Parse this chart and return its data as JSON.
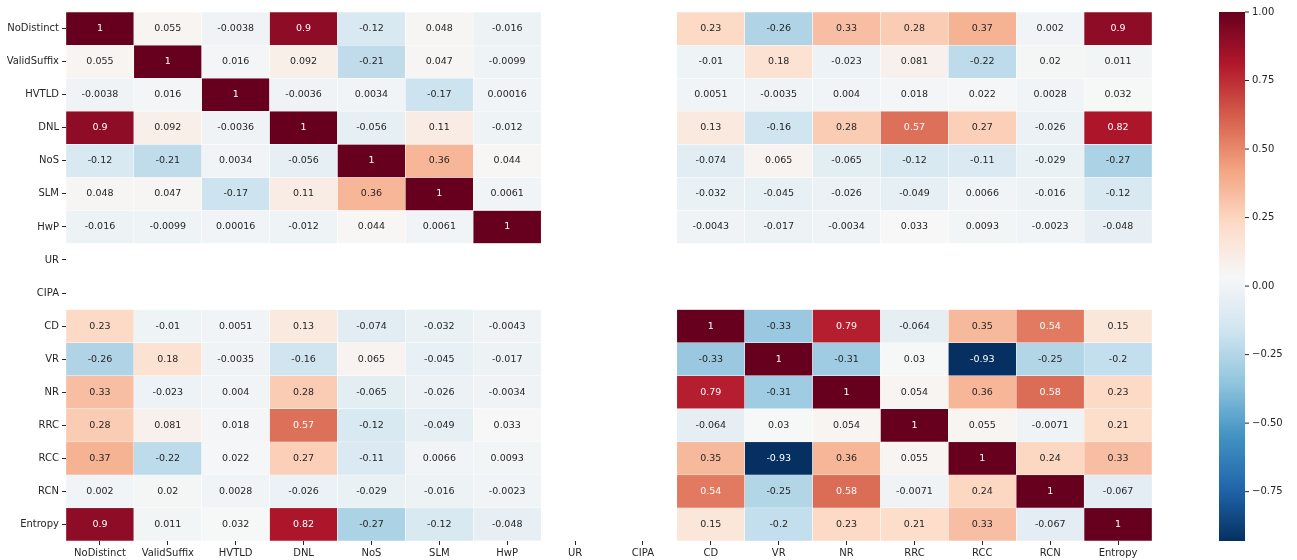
{
  "chart_data": {
    "type": "heatmap",
    "categories": [
      "NoDistinct",
      "ValidSuffix",
      "HVTLD",
      "DNL",
      "NoS",
      "SLM",
      "HwP",
      "UR",
      "CIPA",
      "CD",
      "VR",
      "NR",
      "RRC",
      "RCC",
      "RCN",
      "Entropy"
    ],
    "y_categories": [
      "NoDistinct",
      "ValidSuffix",
      "HVTLD",
      "DNL",
      "NoS",
      "SLM",
      "HwP",
      "UR",
      "CIPA",
      "CD",
      "VR",
      "NR",
      "RRC",
      "RCC",
      "RCN",
      "Entropy"
    ],
    "cells": [
      [
        1,
        0.055,
        -0.0038,
        0.9,
        -0.12,
        0.048,
        -0.016,
        null,
        null,
        0.23,
        -0.26,
        0.33,
        0.28,
        0.37,
        0.002,
        0.9
      ],
      [
        0.055,
        1,
        0.016,
        0.092,
        -0.21,
        0.047,
        -0.0099,
        null,
        null,
        -0.01,
        0.18,
        -0.023,
        0.081,
        -0.22,
        0.02,
        0.011
      ],
      [
        -0.0038,
        0.016,
        1,
        -0.0036,
        0.0034,
        -0.17,
        0.00016,
        null,
        null,
        0.0051,
        -0.0035,
        0.004,
        0.018,
        0.022,
        0.0028,
        0.032
      ],
      [
        0.9,
        0.092,
        -0.0036,
        1,
        -0.056,
        0.11,
        -0.012,
        null,
        null,
        0.13,
        -0.16,
        0.28,
        0.57,
        0.27,
        -0.026,
        0.82
      ],
      [
        -0.12,
        -0.21,
        0.0034,
        -0.056,
        1,
        0.36,
        0.044,
        null,
        null,
        -0.074,
        0.065,
        -0.065,
        -0.12,
        -0.11,
        -0.029,
        -0.27
      ],
      [
        0.048,
        0.047,
        -0.17,
        0.11,
        0.36,
        1,
        0.0061,
        null,
        null,
        -0.032,
        -0.045,
        -0.026,
        -0.049,
        0.0066,
        -0.016,
        -0.12
      ],
      [
        -0.016,
        -0.0099,
        0.00016,
        -0.012,
        0.044,
        0.0061,
        1,
        null,
        null,
        -0.0043,
        -0.017,
        -0.0034,
        0.033,
        0.0093,
        -0.0023,
        -0.048
      ],
      [
        null,
        null,
        null,
        null,
        null,
        null,
        null,
        null,
        null,
        null,
        null,
        null,
        null,
        null,
        null,
        null
      ],
      [
        null,
        null,
        null,
        null,
        null,
        null,
        null,
        null,
        null,
        null,
        null,
        null,
        null,
        null,
        null,
        null
      ],
      [
        0.23,
        -0.01,
        0.0051,
        0.13,
        -0.074,
        -0.032,
        -0.0043,
        null,
        null,
        1,
        -0.33,
        0.79,
        -0.064,
        0.35,
        0.54,
        0.15
      ],
      [
        -0.26,
        0.18,
        -0.0035,
        -0.16,
        0.065,
        -0.045,
        -0.017,
        null,
        null,
        -0.33,
        1,
        -0.31,
        0.03,
        -0.93,
        -0.25,
        -0.2
      ],
      [
        0.33,
        -0.023,
        0.004,
        0.28,
        -0.065,
        -0.026,
        -0.0034,
        null,
        null,
        0.79,
        -0.31,
        1,
        0.054,
        0.36,
        0.58,
        0.23
      ],
      [
        0.28,
        0.081,
        0.018,
        0.57,
        -0.12,
        -0.049,
        0.033,
        null,
        null,
        -0.064,
        0.03,
        0.054,
        1,
        0.055,
        -0.0071,
        0.21
      ],
      [
        0.37,
        -0.22,
        0.022,
        0.27,
        -0.11,
        0.0066,
        0.0093,
        null,
        null,
        0.35,
        -0.93,
        0.36,
        0.055,
        1,
        0.24,
        0.33
      ],
      [
        0.002,
        0.02,
        0.0028,
        -0.026,
        -0.029,
        -0.016,
        -0.0023,
        null,
        null,
        0.54,
        -0.25,
        0.58,
        -0.0071,
        0.24,
        1,
        -0.067
      ],
      [
        0.9,
        0.011,
        0.032,
        0.82,
        -0.27,
        -0.12,
        -0.048,
        null,
        null,
        0.15,
        -0.2,
        0.23,
        0.21,
        0.33,
        -0.067,
        1
      ]
    ],
    "clim": [
      -0.93,
      1
    ],
    "cticks": [
      {
        "value": 1,
        "label": "1.00"
      },
      {
        "value": 0.75,
        "label": "0.75"
      },
      {
        "value": 0.5,
        "label": "0.50"
      },
      {
        "value": 0.25,
        "label": "0.25"
      },
      {
        "value": 0,
        "label": "0.00"
      },
      {
        "value": -0.25,
        "label": "−0.25"
      },
      {
        "value": -0.5,
        "label": "−0.50"
      },
      {
        "value": -0.75,
        "label": "−0.75"
      }
    ],
    "data_labels": true
  }
}
